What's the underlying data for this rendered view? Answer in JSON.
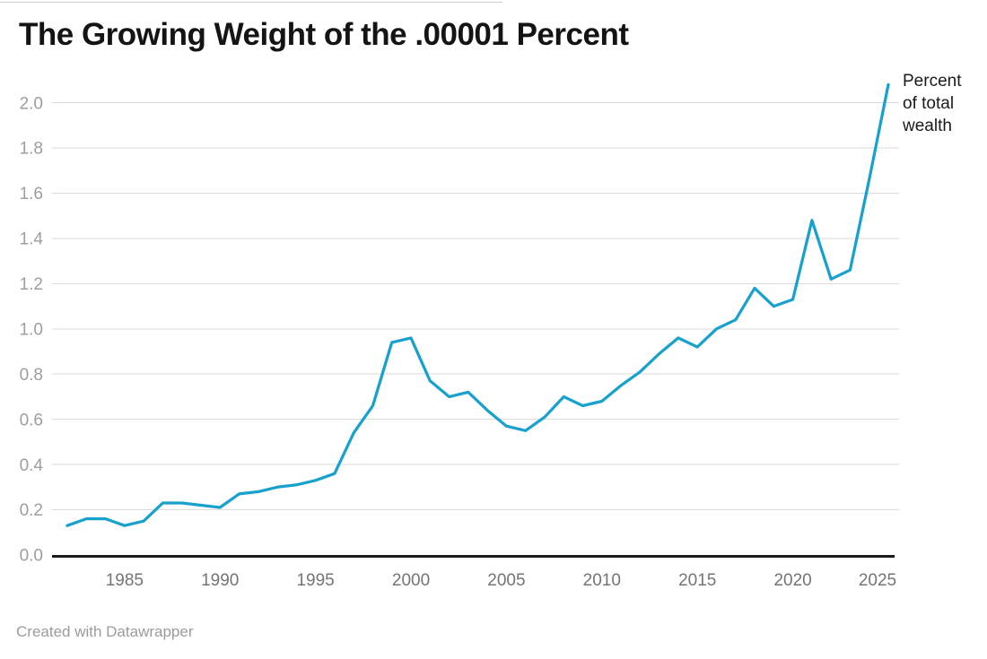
{
  "header": {
    "title": "The Growing Weight of the .00001 Percent"
  },
  "annotation": {
    "label": "Percent of total wealth"
  },
  "footer": {
    "credit": "Created with Datawrapper"
  },
  "colors": {
    "line": "#18a1cd",
    "grid": "#dadada",
    "axis": "#1a1a1a",
    "y_tick": "#9e9e9e",
    "x_tick": "#747474",
    "title": "#141414",
    "background": "#ffffff"
  },
  "chart_data": {
    "type": "line",
    "title": "The Growing Weight of the .00001 Percent",
    "xlabel": "",
    "ylabel": "",
    "x": [
      1982,
      1983,
      1984,
      1985,
      1986,
      1987,
      1988,
      1989,
      1990,
      1991,
      1992,
      1993,
      1994,
      1995,
      1996,
      1997,
      1998,
      1999,
      2000,
      2001,
      2002,
      2003,
      2004,
      2005,
      2006,
      2007,
      2008,
      2009,
      2010,
      2011,
      2012,
      2013,
      2014,
      2015,
      2016,
      2017,
      2018,
      2019,
      2020,
      2021,
      2022,
      2023,
      2024,
      2025
    ],
    "series": [
      {
        "name": "Percent of total wealth",
        "values": [
          0.13,
          0.16,
          0.16,
          0.13,
          0.15,
          0.23,
          0.23,
          0.22,
          0.21,
          0.27,
          0.28,
          0.3,
          0.31,
          0.33,
          0.36,
          0.54,
          0.66,
          0.94,
          0.96,
          0.77,
          0.7,
          0.72,
          0.64,
          0.57,
          0.55,
          0.61,
          0.7,
          0.66,
          0.68,
          0.75,
          0.81,
          0.89,
          0.96,
          0.92,
          1.0,
          1.04,
          1.18,
          1.1,
          1.13,
          1.48,
          1.22,
          1.26,
          1.66,
          2.08
        ]
      }
    ],
    "xticks": [
      1985,
      1990,
      1995,
      2000,
      2005,
      2010,
      2015,
      2020,
      2025
    ],
    "yticks": [
      "0.0",
      "0.2",
      "0.4",
      "0.6",
      "0.8",
      "1.0",
      "1.2",
      "1.4",
      "1.6",
      "1.8",
      "2.0"
    ],
    "xlim": [
      1982,
      2025
    ],
    "ylim": [
      0,
      2.1
    ],
    "grid": "horizontal",
    "legend_position": "annotation-top-right"
  }
}
